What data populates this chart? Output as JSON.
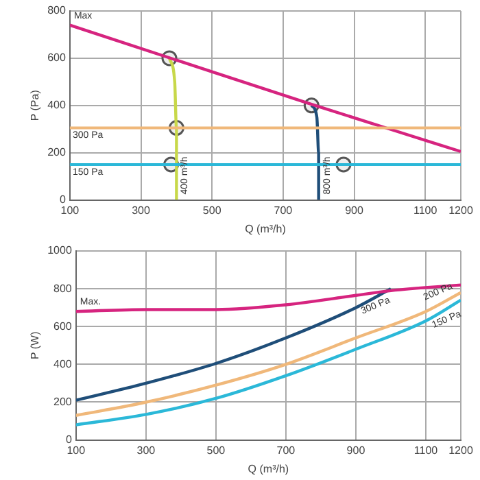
{
  "chart_data": [
    {
      "type": "line",
      "xlabel": "Q (m³/h)",
      "ylabel": "P (Pa)",
      "xlim": [
        100,
        1200
      ],
      "xticks": [
        100,
        300,
        500,
        700,
        900,
        1100,
        1200
      ],
      "ylim": [
        0,
        800
      ],
      "yticks": [
        0,
        200,
        400,
        600,
        800
      ],
      "grid": true,
      "legend": false,
      "marker": "none",
      "ref_lines": [
        {
          "axis": "y",
          "value": 305,
          "label": "300 Pa",
          "color": "#f0b87a"
        },
        {
          "axis": "y",
          "value": 150,
          "label": "150 Pa",
          "color": "#2bb8d8"
        }
      ],
      "series": [
        {
          "name": "Max",
          "color": "#d6247f",
          "x": [
            100,
            400,
            780,
            1000,
            1200
          ],
          "values": [
            740,
            592,
            405,
            300,
            205
          ]
        },
        {
          "name": "400 m³/h",
          "color": "#c8d84a",
          "x": [
            380,
            395,
            400,
            400
          ],
          "values": [
            600,
            500,
            300,
            0
          ]
        },
        {
          "name": "800 m³/h",
          "color": "#1f4e79",
          "x": [
            780,
            795,
            800,
            800
          ],
          "values": [
            400,
            350,
            200,
            0
          ]
        },
        {
          "type": "scatter",
          "marker": "circle",
          "color": "#555555",
          "x": [
            380,
            400,
            385,
            780,
            870
          ],
          "values": [
            600,
            305,
            150,
            400,
            150
          ]
        }
      ]
    },
    {
      "type": "line",
      "xlabel": "Q (m³/h)",
      "ylabel": "P (W)",
      "xlim": [
        100,
        1200
      ],
      "xticks": [
        100,
        300,
        500,
        700,
        900,
        1100,
        1200
      ],
      "ylim": [
        0,
        1000
      ],
      "yticks": [
        0,
        200,
        400,
        600,
        800,
        1000
      ],
      "grid": true,
      "legend": false,
      "marker": "none",
      "series": [
        {
          "name": "Max.",
          "color": "#d6247f",
          "x": [
            100,
            300,
            500,
            700,
            900,
            1000,
            1200
          ],
          "values": [
            680,
            690,
            690,
            715,
            765,
            790,
            820
          ]
        },
        {
          "name": "300 Pa",
          "color": "#1f4e79",
          "x": [
            100,
            300,
            500,
            700,
            900,
            1000
          ],
          "values": [
            210,
            300,
            405,
            540,
            700,
            800
          ]
        },
        {
          "name": "200 Pa",
          "color": "#f0b87a",
          "x": [
            100,
            300,
            500,
            700,
            900,
            1100,
            1200
          ],
          "values": [
            130,
            200,
            290,
            400,
            540,
            680,
            780
          ]
        },
        {
          "name": "150 Pa",
          "color": "#2bb8d8",
          "x": [
            100,
            300,
            500,
            700,
            900,
            1100,
            1200
          ],
          "values": [
            80,
            135,
            220,
            340,
            480,
            630,
            740
          ]
        }
      ]
    }
  ]
}
